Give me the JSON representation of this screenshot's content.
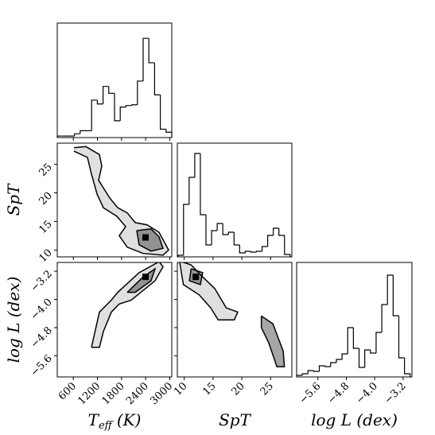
{
  "chart_data": {
    "type": "corner",
    "variables": [
      {
        "label": "T",
        "label_sub": "eff",
        "label_unit": "(K)",
        "lim": [
          200,
          3050
        ],
        "ticks": [
          600,
          1200,
          1800,
          2400,
          3000
        ],
        "bins": [
          200,
          342.5,
          485,
          627.5,
          770,
          912.5,
          1055,
          1197.5,
          1340,
          1482.5,
          1625,
          1767.5,
          1910,
          2052.5,
          2195,
          2337.5,
          2480,
          2622.5,
          2765,
          2907.5,
          3050
        ],
        "counts": [
          2,
          2,
          2,
          5,
          9,
          9,
          49,
          44,
          67,
          58,
          22,
          40,
          42,
          43,
          74,
          130,
          98,
          56,
          11,
          7
        ],
        "hist_ylim": [
          0,
          150
        ]
      },
      {
        "label": "SpT",
        "lim": [
          8.8,
          28.7
        ],
        "ticks": [
          10,
          15,
          20,
          25
        ],
        "bins": [
          8.9,
          9.875,
          10.85,
          11.825,
          12.8,
          13.775,
          14.75,
          15.725,
          16.7,
          17.675,
          18.65,
          19.625,
          20.6,
          21.575,
          22.55,
          23.525,
          24.5,
          25.475,
          26.45,
          27.425,
          28.4
        ],
        "counts": [
          2,
          66,
          100,
          130,
          53,
          15,
          33,
          42,
          28,
          31,
          15,
          5,
          7,
          6,
          7,
          13,
          27,
          36,
          27,
          3
        ],
        "hist_ylim": [
          0,
          143
        ]
      },
      {
        "label": "log L (dex)",
        "lim": [
          -6.2,
          -2.95
        ],
        "ticks": [
          {
            "value": -5.6,
            "label": "−5.6"
          },
          {
            "value": -4.8,
            "label": "−4.8"
          },
          {
            "value": -4,
            "label": "−4.0"
          },
          {
            "value": -3.2,
            "label": "−3.2"
          }
        ],
        "bins": [
          -6.2,
          -6.04,
          -5.88,
          -5.72,
          -5.56,
          -5.4,
          -5.24,
          -5.08,
          -4.92,
          -4.76,
          -4.6,
          -4.44,
          -4.28,
          -4.12,
          -3.96,
          -3.8,
          -3.64,
          -3.48,
          -3.32,
          -3.16,
          -3.0
        ],
        "counts": [
          2,
          4,
          8,
          7,
          14,
          13,
          18,
          22,
          29,
          62,
          36,
          12,
          34,
          30,
          56,
          91,
          128,
          77,
          24,
          4
        ],
        "hist_ylim": [
          0,
          144
        ]
      }
    ],
    "pairs": [
      {
        "contours": [
          {
            "x": [
              616,
              912,
              1249,
              1308,
              1229,
              1506,
              1704,
              1942,
              2139,
              2436,
              2733,
              2971,
              2832,
              2337,
              1942,
              1743,
              1902,
              1684,
              1348,
              1190,
              1051,
              952,
              616
            ],
            "y": [
              27.9,
              28.1,
              26.7,
              24.7,
              22.2,
              19.1,
              17.4,
              16.5,
              14.8,
              14.4,
              13.1,
              10.0,
              9.1,
              9.4,
              10.5,
              12.5,
              14.1,
              15.9,
              17.4,
              19.8,
              23.3,
              26.2,
              27.3
            ]
          },
          {
            "x": [
              2179,
              2535,
              2733,
              2832,
              2535,
              2238,
              2179
            ],
            "y": [
              13.4,
              13.7,
              12.3,
              10.3,
              9.8,
              10.9,
              13.4
            ]
          }
        ],
        "peak": {
          "x": 2397,
          "y": 12.2
        }
      },
      {
        "contours": [
          {
            "x": [
              1051,
              1249,
              1546,
              1704,
              2238,
              2733,
              2832,
              2634,
              2040,
              1743,
              1546,
              1348,
              1249,
              1051
            ],
            "y": [
              -5.36,
              -4.36,
              -4.02,
              -3.8,
              -3.24,
              -2.93,
              -3.07,
              -3.47,
              -4.02,
              -4.13,
              -4.36,
              -4.91,
              -5.36,
              -5.36
            ]
          },
          {
            "x": [
              1942,
              2337,
              2634,
              2535,
              2139,
              1942
            ],
            "y": [
              -3.8,
              -3.36,
              -3.13,
              -3.47,
              -3.8,
              -3.8
            ]
          }
        ],
        "peak": {
          "x": 2397,
          "y": -3.36
        }
      },
      {
        "contours": [
          {
            "x": [
              9.17,
              11.2,
              13.2,
              15.3,
              17.3,
              19.3,
              18.7,
              15.9,
              14.6,
              12.6,
              9.85,
              9.17
            ],
            "y": [
              -2.91,
              -3.02,
              -3.36,
              -3.69,
              -4.24,
              -4.36,
              -4.58,
              -4.58,
              -4.24,
              -3.87,
              -3.58,
              -2.91
            ]
          },
          {
            "x": [
              23.4,
              25.4,
              27.2,
              27.4,
              26.1,
              24.7,
              23.4,
              23.4
            ],
            "y": [
              -4.47,
              -4.69,
              -5.47,
              -5.91,
              -5.91,
              -5.24,
              -4.8,
              -4.47
            ]
          },
          {
            "x": [
              11.2,
              13.2,
              12.8,
              10.9,
              11.2
            ],
            "y": [
              -3.13,
              -3.24,
              -3.58,
              -3.47,
              -3.13
            ]
          }
        ],
        "peak": {
          "x": 12.0,
          "y": -3.36
        }
      }
    ]
  }
}
